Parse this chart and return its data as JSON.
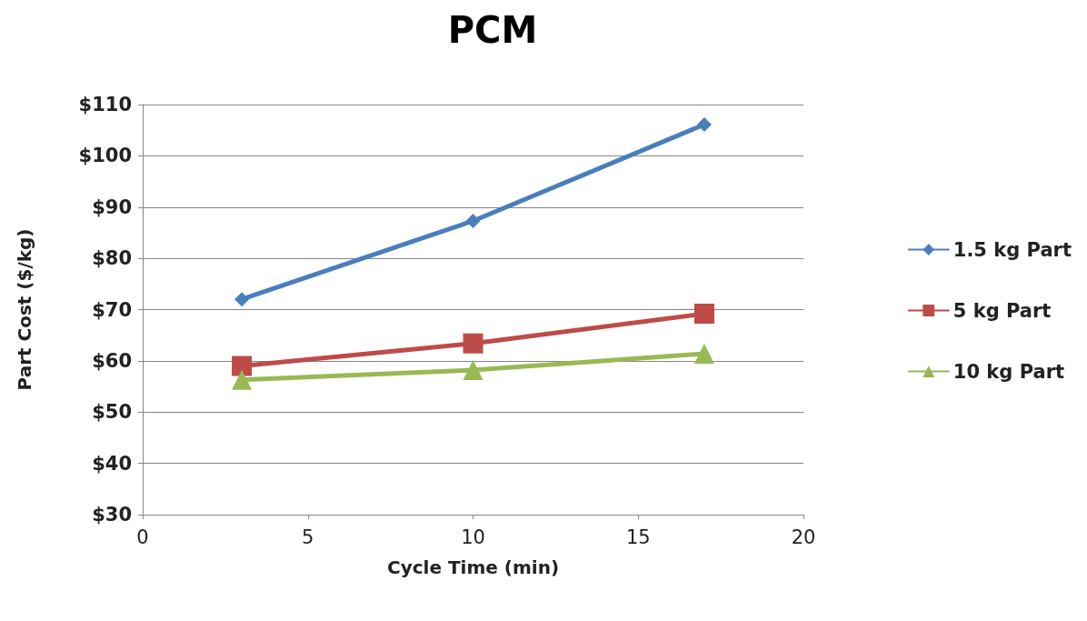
{
  "chart_data": {
    "type": "line",
    "title": "PCM",
    "xlabel": "Cycle Time (min)",
    "ylabel": "Part Cost ($/kg)",
    "x": [
      3,
      10,
      17
    ],
    "series": [
      {
        "name": "1.5 kg Part",
        "color": "#4a7ebb",
        "marker": "diamond",
        "values": [
          72,
          87.3,
          106.1
        ]
      },
      {
        "name": "5 kg Part",
        "color": "#be4b48",
        "marker": "square",
        "values": [
          59,
          63.4,
          69.2
        ]
      },
      {
        "name": "10 kg Part",
        "color": "#98b954",
        "marker": "triangle",
        "values": [
          56.3,
          58.2,
          61.4
        ]
      }
    ],
    "xlim": [
      0,
      20
    ],
    "xticks": [
      0,
      5,
      10,
      15,
      20
    ],
    "ylim": [
      30,
      110
    ],
    "yticks": [
      {
        "value": 30,
        "label": "$30"
      },
      {
        "value": 40,
        "label": "$40"
      },
      {
        "value": 50,
        "label": "$50"
      },
      {
        "value": 60,
        "label": "$60"
      },
      {
        "value": 70,
        "label": "$70"
      },
      {
        "value": 80,
        "label": "$80"
      },
      {
        "value": 90,
        "label": "$90"
      },
      {
        "value": 100,
        "label": "$100"
      },
      {
        "value": 110,
        "label": "$110"
      }
    ],
    "grid": "y",
    "legend": "right",
    "line_style": "solid"
  }
}
